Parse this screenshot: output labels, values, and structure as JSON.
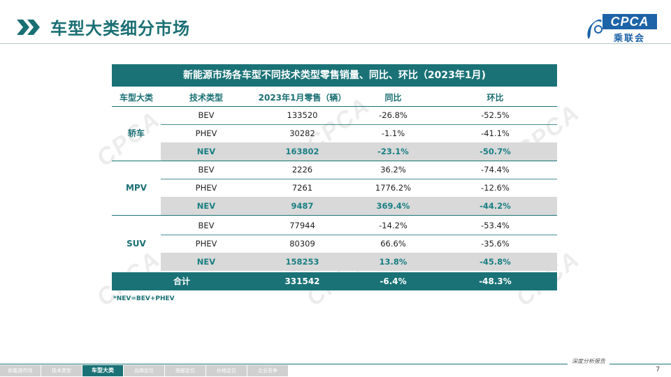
{
  "page": {
    "title": "车型大类细分市场",
    "logo_text": "CPCA",
    "logo_cn": "乘联会",
    "watermark": "CPCA",
    "page_number": "7",
    "footer_tag": "深度分析报告"
  },
  "table": {
    "title": "新能源市场各车型不同技术类型零售销量、同比、环比（2023年1月)",
    "headers": [
      "车型大类",
      "技术类型",
      "2023年1月零售（辆）",
      "同比",
      "环比"
    ],
    "groups": [
      {
        "category": "轿车",
        "rows": [
          {
            "tech": "BEV",
            "sales": "133520",
            "yoy": "-26.8%",
            "mom": "-52.5%"
          },
          {
            "tech": "PHEV",
            "sales": "30282",
            "yoy": "-1.1%",
            "mom": "-41.1%"
          },
          {
            "tech": "NEV",
            "sales": "163802",
            "yoy": "-23.1%",
            "mom": "-50.7%"
          }
        ]
      },
      {
        "category": "MPV",
        "rows": [
          {
            "tech": "BEV",
            "sales": "2226",
            "yoy": "36.2%",
            "mom": "-74.4%"
          },
          {
            "tech": "PHEV",
            "sales": "7261",
            "yoy": "1776.2%",
            "mom": "-12.6%"
          },
          {
            "tech": "NEV",
            "sales": "9487",
            "yoy": "369.4%",
            "mom": "-44.2%"
          }
        ]
      },
      {
        "category": "SUV",
        "rows": [
          {
            "tech": "BEV",
            "sales": "77944",
            "yoy": "-14.2%",
            "mom": "-53.4%"
          },
          {
            "tech": "PHEV",
            "sales": "80309",
            "yoy": "66.6%",
            "mom": "-35.6%"
          },
          {
            "tech": "NEV",
            "sales": "158253",
            "yoy": "13.8%",
            "mom": "-45.8%"
          }
        ]
      }
    ],
    "total": {
      "label": "合计",
      "sales": "331542",
      "yoy": "-6.4%",
      "mom": "-48.3%"
    },
    "note": "*NEV=BEV+PHEV"
  },
  "nav": {
    "items": [
      "新能源市场",
      "技术类型",
      "车型大类",
      "品牌定位",
      "细部定位",
      "价格定位",
      "企业竞争"
    ],
    "active_index": 2
  },
  "colors": {
    "accent": "#1a7276",
    "nev_row_bg": "#d9d9d9",
    "logo_blue": "#1d63a8"
  }
}
